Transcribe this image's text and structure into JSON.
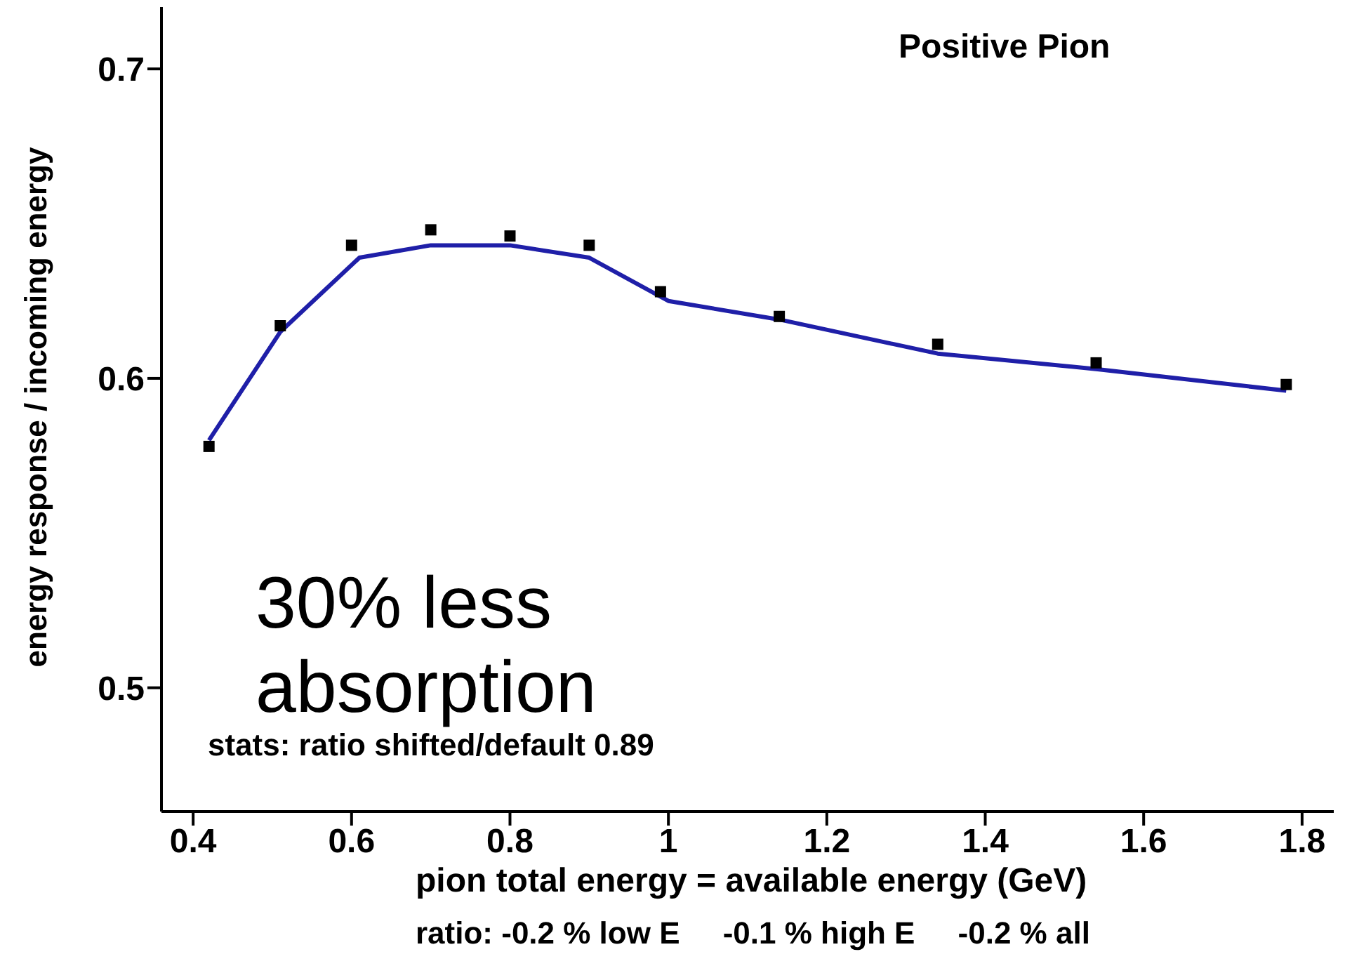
{
  "chart_data": {
    "type": "scatter",
    "title": "Positive Pion",
    "xlabel": "pion total energy = available energy (GeV)",
    "ylabel": "energy response / incoming energy",
    "xlim": [
      0.36,
      1.84
    ],
    "xticks": [
      0.4,
      0.6,
      0.8,
      1,
      1.2,
      1.4,
      1.6,
      1.8
    ],
    "ylim": [
      0.46,
      0.72
    ],
    "yticks": [
      0.5,
      0.6,
      0.7
    ],
    "series": [
      {
        "type": "line",
        "color": "#1f1fa8",
        "marker": "none",
        "x": [
          0.42,
          0.51,
          0.61,
          0.7,
          0.8,
          0.9,
          1.0,
          1.14,
          1.34,
          1.54,
          1.78
        ],
        "values": [
          0.58,
          0.615,
          0.639,
          0.643,
          0.643,
          0.639,
          0.625,
          0.619,
          0.608,
          0.603,
          0.596
        ]
      },
      {
        "type": "scatter",
        "color": "#000000",
        "marker": "square",
        "x": [
          0.42,
          0.51,
          0.6,
          0.7,
          0.8,
          0.9,
          0.99,
          1.14,
          1.34,
          1.54,
          1.78
        ],
        "values": [
          0.578,
          0.617,
          0.643,
          0.648,
          0.646,
          0.643,
          0.628,
          0.62,
          0.611,
          0.605,
          0.598
        ]
      }
    ],
    "annotations": [
      "30% less absorption",
      "stats:  ratio shifted/default 0.89",
      "ratio: -0.2 % low E     -0.1 % high E     -0.2 % all"
    ]
  }
}
